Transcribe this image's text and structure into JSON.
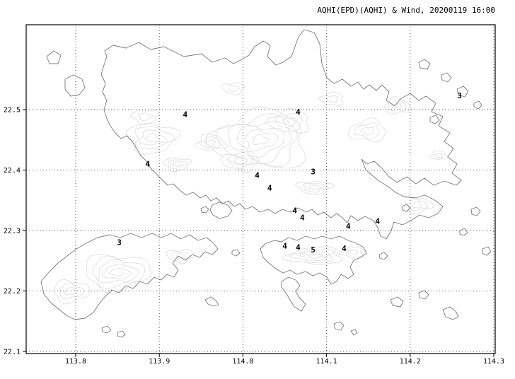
{
  "title": "AQHI(EPD)(AQHI) & Wind, 20200119 16:00",
  "colors": {
    "station_value": "#1a1acc",
    "coastline": "#787878",
    "contour": "#dcdcdc",
    "grid": "#555555",
    "frame": "#000000"
  },
  "chart_data": {
    "type": "map",
    "title": "AQHI(EPD)(AQHI) & Wind, 20200119 16:00",
    "description": "AQHI values plotted at monitoring station locations over Hong Kong coastline with terrain contours",
    "grid": "dotted",
    "x_axis": {
      "name": "longitude",
      "ticks": [
        "113.8",
        "113.9",
        "114.0",
        "114.1",
        "114.2",
        "114.3"
      ],
      "range": [
        113.741,
        114.302
      ]
    },
    "y_axis": {
      "name": "latitude",
      "ticks": [
        "22.1",
        "22.2",
        "22.3",
        "22.4",
        "22.5"
      ],
      "range": [
        22.097,
        22.64
      ]
    },
    "stations": [
      {
        "value": 4,
        "lon": 113.931,
        "lat": 22.492
      },
      {
        "value": 4,
        "lon": 114.066,
        "lat": 22.496
      },
      {
        "value": 3,
        "lon": 114.259,
        "lat": 22.523
      },
      {
        "value": 4,
        "lon": 113.886,
        "lat": 22.41
      },
      {
        "value": 4,
        "lon": 114.017,
        "lat": 22.391
      },
      {
        "value": 3,
        "lon": 114.084,
        "lat": 22.397
      },
      {
        "value": 4,
        "lon": 114.032,
        "lat": 22.37
      },
      {
        "value": 4,
        "lon": 114.062,
        "lat": 22.333
      },
      {
        "value": 4,
        "lon": 114.071,
        "lat": 22.321
      },
      {
        "value": 4,
        "lon": 114.126,
        "lat": 22.307
      },
      {
        "value": 4,
        "lon": 114.161,
        "lat": 22.315
      },
      {
        "value": 3,
        "lon": 113.852,
        "lat": 22.28
      },
      {
        "value": 4,
        "lon": 114.05,
        "lat": 22.274
      },
      {
        "value": 4,
        "lon": 114.066,
        "lat": 22.272
      },
      {
        "value": 5,
        "lon": 114.084,
        "lat": 22.268
      },
      {
        "value": 4,
        "lon": 114.121,
        "lat": 22.27
      }
    ]
  }
}
